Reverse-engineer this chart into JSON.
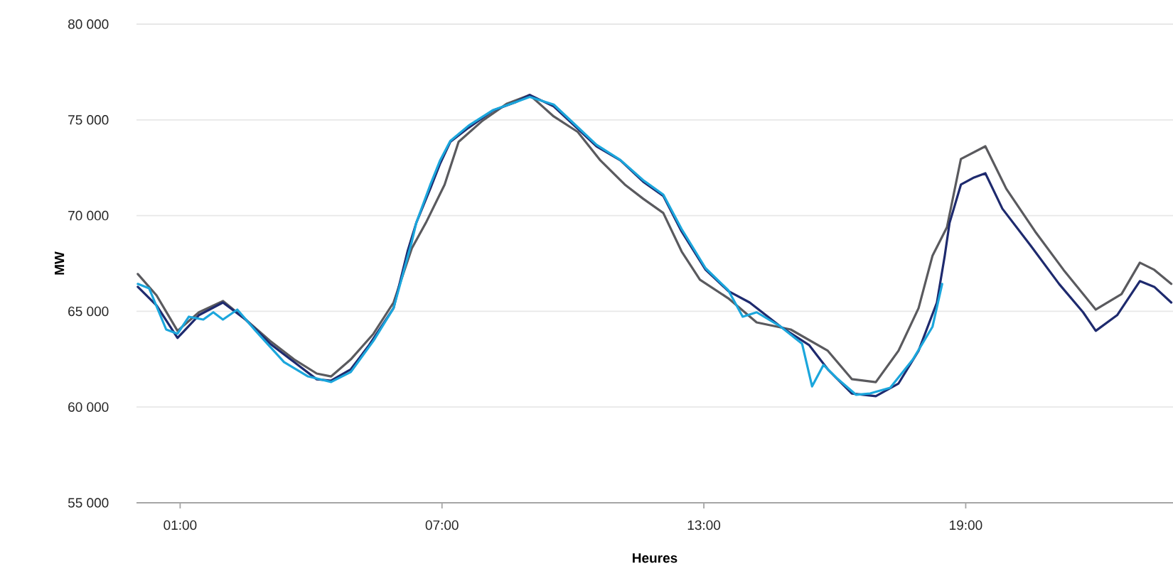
{
  "chart_data": {
    "type": "line",
    "xlabel": "Heures",
    "ylabel": "MW",
    "xlim": [
      0,
      23.75
    ],
    "ylim": [
      55000,
      80000
    ],
    "xticks": [
      {
        "value": 1,
        "label": "01:00"
      },
      {
        "value": 7,
        "label": "07:00"
      },
      {
        "value": 13,
        "label": "13:00"
      },
      {
        "value": 19,
        "label": "19:00"
      }
    ],
    "yticks": [
      {
        "value": 55000,
        "label": "55 000"
      },
      {
        "value": 60000,
        "label": "60 000"
      },
      {
        "value": 65000,
        "label": "65 000"
      },
      {
        "value": 70000,
        "label": "70 000"
      },
      {
        "value": 75000,
        "label": "75 000"
      },
      {
        "value": 80000,
        "label": "80 000"
      }
    ],
    "grid": "y",
    "marker": "none",
    "line_style": "solid",
    "series": [
      {
        "color": "#5a5a5e",
        "x": [
          0.03,
          0.46,
          0.94,
          1.43,
          1.98,
          2.5,
          3.06,
          3.61,
          4.13,
          4.46,
          4.91,
          5.43,
          5.89,
          6.31,
          6.63,
          7.06,
          7.38,
          7.93,
          8.49,
          9.01,
          9.56,
          10.11,
          10.63,
          11.19,
          11.61,
          12.07,
          12.49,
          12.91,
          13.56,
          14.21,
          14.99,
          15.84,
          16.39,
          16.94,
          17.46,
          17.92,
          18.24,
          18.57,
          18.89,
          19.45,
          19.93,
          20.59,
          21.24,
          21.98,
          22.57,
          22.99,
          23.32,
          23.71
        ],
        "values": [
          66950,
          65830,
          63980,
          64950,
          65540,
          64570,
          63460,
          62490,
          61750,
          61600,
          62490,
          63830,
          65460,
          68300,
          69620,
          71620,
          73850,
          74960,
          75850,
          76300,
          75180,
          74370,
          72880,
          71620,
          70880,
          70140,
          68130,
          66650,
          65680,
          64420,
          64050,
          62940,
          61460,
          61300,
          62940,
          65170,
          67910,
          69390,
          72960,
          73620,
          71400,
          69170,
          67170,
          65090,
          65900,
          67540,
          67170,
          66430
        ]
      },
      {
        "color": "#1e2a6e",
        "x": [
          0.03,
          0.46,
          0.94,
          1.43,
          1.98,
          2.5,
          3.06,
          3.61,
          4.13,
          4.46,
          4.91,
          5.33,
          5.89,
          6.21,
          6.41,
          6.73,
          6.96,
          7.19,
          7.61,
          8.16,
          8.68,
          9.01,
          9.56,
          9.98,
          10.54,
          11.09,
          11.61,
          12.07,
          12.49,
          13.04,
          13.56,
          14.05,
          14.76,
          15.41,
          15.84,
          16.39,
          16.94,
          17.46,
          17.92,
          18.34,
          18.52,
          18.63,
          18.89,
          19.19,
          19.45,
          19.84,
          20.49,
          21.14,
          21.69,
          21.98,
          22.47,
          22.99,
          23.32,
          23.71
        ],
        "values": [
          66280,
          65310,
          63610,
          64800,
          65460,
          64570,
          63310,
          62350,
          61450,
          61380,
          61970,
          63240,
          65170,
          68130,
          69620,
          71400,
          72730,
          73850,
          74590,
          75480,
          75920,
          76300,
          75700,
          74810,
          73620,
          72880,
          71770,
          71030,
          69170,
          67170,
          66060,
          65460,
          64200,
          63240,
          61970,
          60710,
          60570,
          61230,
          62940,
          65460,
          67910,
          69620,
          71620,
          71990,
          72210,
          70360,
          68430,
          66430,
          64950,
          63980,
          64800,
          66580,
          66280,
          65460
        ]
      },
      {
        "color": "#1ba6dc",
        "x": [
          0.03,
          0.29,
          0.68,
          0.94,
          1.2,
          1.53,
          1.76,
          1.98,
          2.31,
          2.73,
          3.38,
          3.93,
          4.46,
          4.91,
          5.43,
          5.89,
          6.31,
          6.41,
          6.73,
          6.96,
          7.19,
          7.61,
          8.16,
          8.68,
          9.01,
          9.56,
          9.98,
          10.54,
          11.09,
          11.61,
          12.07,
          12.49,
          13.04,
          13.56,
          13.89,
          14.21,
          14.76,
          15.25,
          15.48,
          15.74,
          16.07,
          16.49,
          16.81,
          17.27,
          17.79,
          18.24,
          18.46
        ],
        "values": [
          66430,
          66200,
          64050,
          63830,
          64720,
          64570,
          64950,
          64570,
          65090,
          63980,
          62350,
          61600,
          61310,
          61830,
          63460,
          65170,
          68650,
          69620,
          71600,
          72900,
          73900,
          74700,
          75500,
          75920,
          76200,
          75800,
          74900,
          73700,
          72900,
          71850,
          71100,
          69300,
          67250,
          66100,
          64720,
          64950,
          64200,
          63310,
          61080,
          62200,
          61460,
          60640,
          60710,
          61010,
          62490,
          64200,
          66430
        ]
      }
    ]
  }
}
